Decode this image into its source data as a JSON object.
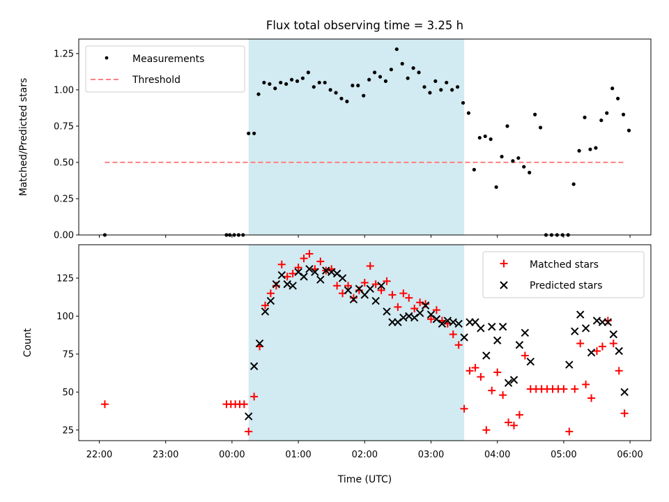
{
  "chart_data": [
    {
      "type": "scatter",
      "title": "Flux total observing time = 3.25 h",
      "xlabel": "",
      "ylabel": "Matched/Predicted stars",
      "ylim": [
        0,
        1.35
      ],
      "yticks": [
        "0.00",
        "0.25",
        "0.50",
        "0.75",
        "1.00",
        "1.25"
      ],
      "legend": {
        "position": "upper-left",
        "entries": [
          "Measurements",
          "Threshold"
        ]
      },
      "shaded_span": {
        "start": "00:15",
        "end": "03:30"
      },
      "threshold": {
        "y": 0.5,
        "from": "22:05",
        "to": "05:55",
        "color": "#ff7f7f"
      },
      "series": [
        {
          "name": "Measurements",
          "color": "#000000",
          "points": [
            [
              "22:05",
              0.0
            ],
            [
              "23:55",
              0.0
            ],
            [
              "23:58",
              0.0
            ],
            [
              "00:02",
              0.0
            ],
            [
              "00:06",
              0.0
            ],
            [
              "00:10",
              0.0
            ],
            [
              "00:15",
              0.7
            ],
            [
              "00:20",
              0.7
            ],
            [
              "00:24",
              0.97
            ],
            [
              "00:29",
              1.05
            ],
            [
              "00:34",
              1.04
            ],
            [
              "00:39",
              1.01
            ],
            [
              "00:44",
              1.05
            ],
            [
              "00:49",
              1.04
            ],
            [
              "00:54",
              1.07
            ],
            [
              "00:59",
              1.06
            ],
            [
              "01:04",
              1.08
            ],
            [
              "01:09",
              1.12
            ],
            [
              "01:14",
              1.02
            ],
            [
              "01:19",
              1.05
            ],
            [
              "01:24",
              1.05
            ],
            [
              "01:29",
              1.0
            ],
            [
              "01:34",
              0.98
            ],
            [
              "01:39",
              0.94
            ],
            [
              "01:44",
              0.92
            ],
            [
              "01:49",
              1.03
            ],
            [
              "01:54",
              1.03
            ],
            [
              "01:59",
              0.96
            ],
            [
              "02:04",
              1.07
            ],
            [
              "02:09",
              1.12
            ],
            [
              "02:14",
              1.09
            ],
            [
              "02:19",
              1.06
            ],
            [
              "02:24",
              1.14
            ],
            [
              "02:29",
              1.28
            ],
            [
              "02:34",
              1.18
            ],
            [
              "02:39",
              1.08
            ],
            [
              "02:44",
              1.15
            ],
            [
              "02:49",
              1.12
            ],
            [
              "02:54",
              1.02
            ],
            [
              "02:59",
              0.98
            ],
            [
              "03:04",
              1.06
            ],
            [
              "03:09",
              1.0
            ],
            [
              "03:14",
              1.05
            ],
            [
              "03:19",
              1.0
            ],
            [
              "03:24",
              1.02
            ],
            [
              "03:29",
              0.91
            ],
            [
              "03:34",
              0.84
            ],
            [
              "03:39",
              0.45
            ],
            [
              "03:44",
              0.67
            ],
            [
              "03:49",
              0.68
            ],
            [
              "03:54",
              0.66
            ],
            [
              "03:59",
              0.33
            ],
            [
              "04:04",
              0.54
            ],
            [
              "04:09",
              0.75
            ],
            [
              "04:14",
              0.51
            ],
            [
              "04:19",
              0.53
            ],
            [
              "04:24",
              0.47
            ],
            [
              "04:29",
              0.43
            ],
            [
              "04:34",
              0.83
            ],
            [
              "04:39",
              0.74
            ],
            [
              "04:44",
              0.0
            ],
            [
              "04:49",
              0.0
            ],
            [
              "04:54",
              0.0
            ],
            [
              "04:59",
              0.0
            ],
            [
              "05:04",
              0.0
            ],
            [
              "05:09",
              0.35
            ],
            [
              "05:14",
              0.58
            ],
            [
              "05:19",
              0.81
            ],
            [
              "05:24",
              0.59
            ],
            [
              "05:29",
              0.6
            ],
            [
              "05:34",
              0.79
            ],
            [
              "05:39",
              0.84
            ],
            [
              "05:44",
              1.01
            ],
            [
              "05:49",
              0.94
            ],
            [
              "05:54",
              0.83
            ],
            [
              "05:59",
              0.72
            ]
          ]
        }
      ]
    },
    {
      "type": "scatter",
      "title": "",
      "xlabel": "Time (UTC)",
      "ylabel": "Count",
      "ylim": [
        18,
        147
      ],
      "yticks": [
        "25",
        "50",
        "75",
        "100",
        "125"
      ],
      "xticks": [
        "22:00",
        "23:00",
        "00:00",
        "01:00",
        "02:00",
        "03:00",
        "04:00",
        "05:00",
        "06:00"
      ],
      "legend": {
        "position": "upper-right",
        "entries": [
          "Matched stars",
          "Predicted stars"
        ]
      },
      "shaded_span": {
        "start": "00:15",
        "end": "03:30"
      },
      "series": [
        {
          "name": "Matched stars",
          "marker": "plus",
          "color": "#ff0000",
          "points": [
            [
              "22:05",
              42
            ],
            [
              "23:55",
              42
            ],
            [
              "23:59",
              42
            ],
            [
              "00:03",
              42
            ],
            [
              "00:07",
              42
            ],
            [
              "00:11",
              42
            ],
            [
              "00:15",
              24
            ],
            [
              "00:20",
              47
            ],
            [
              "00:25",
              80
            ],
            [
              "00:30",
              107
            ],
            [
              "00:35",
              115
            ],
            [
              "00:40",
              120
            ],
            [
              "00:45",
              134
            ],
            [
              "00:50",
              126
            ],
            [
              "00:55",
              128
            ],
            [
              "01:00",
              132
            ],
            [
              "01:05",
              138
            ],
            [
              "01:10",
              141
            ],
            [
              "01:15",
              131
            ],
            [
              "01:20",
              136
            ],
            [
              "01:25",
              130
            ],
            [
              "01:30",
              131
            ],
            [
              "01:35",
              120
            ],
            [
              "01:40",
              115
            ],
            [
              "01:45",
              120
            ],
            [
              "01:50",
              112
            ],
            [
              "01:55",
              117
            ],
            [
              "02:00",
              122
            ],
            [
              "02:05",
              133
            ],
            [
              "02:10",
              121
            ],
            [
              "02:15",
              117
            ],
            [
              "02:20",
              123
            ],
            [
              "02:25",
              114
            ],
            [
              "02:30",
              106
            ],
            [
              "02:35",
              115
            ],
            [
              "02:40",
              112
            ],
            [
              "02:45",
              105
            ],
            [
              "02:50",
              109
            ],
            [
              "02:55",
              108
            ],
            [
              "03:00",
              98
            ],
            [
              "03:05",
              104
            ],
            [
              "03:10",
              97
            ],
            [
              "03:15",
              95
            ],
            [
              "03:20",
              88
            ],
            [
              "03:25",
              81
            ],
            [
              "03:30",
              39
            ],
            [
              "03:35",
              64
            ],
            [
              "03:40",
              66
            ],
            [
              "03:45",
              60
            ],
            [
              "03:50",
              25
            ],
            [
              "03:55",
              51
            ],
            [
              "04:00",
              63
            ],
            [
              "04:05",
              48
            ],
            [
              "04:10",
              30
            ],
            [
              "04:15",
              28
            ],
            [
              "04:20",
              35
            ],
            [
              "04:25",
              74
            ],
            [
              "04:30",
              52
            ],
            [
              "04:35",
              52
            ],
            [
              "04:40",
              52
            ],
            [
              "04:45",
              52
            ],
            [
              "04:50",
              52
            ],
            [
              "04:55",
              52
            ],
            [
              "05:00",
              52
            ],
            [
              "05:05",
              24
            ],
            [
              "05:10",
              52
            ],
            [
              "05:15",
              82
            ],
            [
              "05:20",
              55
            ],
            [
              "05:25",
              46
            ],
            [
              "05:30",
              77
            ],
            [
              "05:35",
              80
            ],
            [
              "05:40",
              97
            ],
            [
              "05:45",
              82
            ],
            [
              "05:50",
              64
            ],
            [
              "05:55",
              36
            ]
          ]
        },
        {
          "name": "Predicted stars",
          "marker": "x",
          "color": "#000000",
          "points": [
            [
              "00:15",
              34
            ],
            [
              "00:20",
              67
            ],
            [
              "00:25",
              82
            ],
            [
              "00:30",
              103
            ],
            [
              "00:35",
              110
            ],
            [
              "00:40",
              121
            ],
            [
              "00:45",
              127
            ],
            [
              "00:50",
              121
            ],
            [
              "00:55",
              120
            ],
            [
              "01:00",
              129
            ],
            [
              "01:05",
              126
            ],
            [
              "01:10",
              131
            ],
            [
              "01:15",
              129
            ],
            [
              "01:20",
              124
            ],
            [
              "01:25",
              130
            ],
            [
              "01:30",
              129
            ],
            [
              "01:35",
              128
            ],
            [
              "01:40",
              125
            ],
            [
              "01:45",
              117
            ],
            [
              "01:50",
              111
            ],
            [
              "01:55",
              118
            ],
            [
              "02:00",
              114
            ],
            [
              "02:05",
              118
            ],
            [
              "02:10",
              110
            ],
            [
              "02:15",
              120
            ],
            [
              "02:20",
              103
            ],
            [
              "02:25",
              96
            ],
            [
              "02:30",
              96
            ],
            [
              "02:35",
              99
            ],
            [
              "02:40",
              100
            ],
            [
              "02:45",
              99
            ],
            [
              "02:50",
              102
            ],
            [
              "02:55",
              107
            ],
            [
              "03:00",
              101
            ],
            [
              "03:05",
              98
            ],
            [
              "03:10",
              95
            ],
            [
              "03:15",
              97
            ],
            [
              "03:20",
              96
            ],
            [
              "03:25",
              95
            ],
            [
              "03:30",
              86
            ],
            [
              "03:35",
              96
            ],
            [
              "03:40",
              96
            ],
            [
              "03:45",
              92
            ],
            [
              "03:50",
              74
            ],
            [
              "03:55",
              93
            ],
            [
              "04:00",
              84
            ],
            [
              "04:05",
              93
            ],
            [
              "04:10",
              56
            ],
            [
              "04:15",
              58
            ],
            [
              "04:20",
              81
            ],
            [
              "04:25",
              89
            ],
            [
              "04:30",
              70
            ],
            [
              "05:05",
              68
            ],
            [
              "05:10",
              90
            ],
            [
              "05:15",
              101
            ],
            [
              "05:20",
              92
            ],
            [
              "05:25",
              76
            ],
            [
              "05:30",
              97
            ],
            [
              "05:35",
              96
            ],
            [
              "05:40",
              96
            ],
            [
              "05:45",
              88
            ],
            [
              "05:50",
              77
            ],
            [
              "05:55",
              50
            ]
          ]
        }
      ]
    }
  ]
}
